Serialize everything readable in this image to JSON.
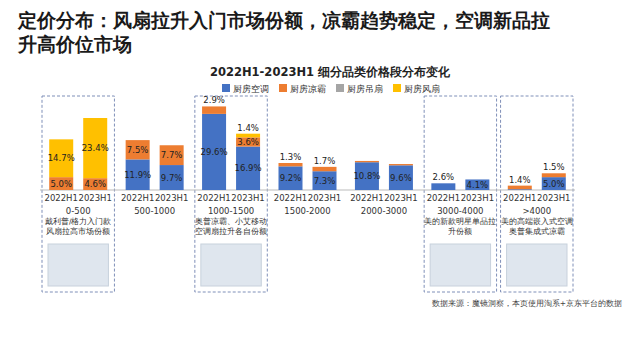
{
  "chart_data": {
    "type": "bar",
    "title": "定价分布：风扇拉升入门市场份额，凉霸趋势稳定，空调新品拉升高价位市场",
    "subtitle": "2022H1-2023H1 细分品类价格段分布变化",
    "categories": [
      "2022H1",
      "2023H1",
      "2022H1",
      "2023H1",
      "2022H1",
      "2023H1",
      "2022H1",
      "2023H1",
      "2022H1",
      "2023H1",
      "2022H1",
      "2023H1",
      "2022H1",
      "2023H1"
    ],
    "groups": [
      "0-500",
      "500-1000",
      "1000-1500",
      "1500-2000",
      "2000-3000",
      "3000-4000",
      ">4000"
    ],
    "series": [
      {
        "name": "厨房空调",
        "color": "#4472c4",
        "values": [
          0,
          0,
          11.9,
          9.7,
          29.6,
          16.9,
          9.2,
          7.3,
          10.8,
          9.6,
          2.6,
          4.1,
          0.3,
          5.0
        ],
        "value_labels": [
          null,
          null,
          "11.9%",
          "9.7%",
          "29.6%",
          "16.9%",
          "9.2%",
          "7.3%",
          "10.8%",
          "9.6%",
          "2.6%",
          "4.1%",
          null,
          "5.0%"
        ]
      },
      {
        "name": "厨房凉霸",
        "color": "#ed7d31",
        "values": [
          5.0,
          4.6,
          7.5,
          7.7,
          2.9,
          3.6,
          1.3,
          1.7,
          0.5,
          0.5,
          0,
          0,
          1.4,
          1.5
        ],
        "value_labels": [
          "5.0%",
          "4.6%",
          "7.5%",
          "7.7%",
          "2.9%",
          "3.6%",
          "1.3%",
          "1.7%",
          null,
          null,
          null,
          null,
          "1.4%",
          "1.5%"
        ]
      },
      {
        "name": "厨房吊扇",
        "color": "#a5a5a5",
        "values": [
          0,
          0,
          0,
          0,
          0,
          0,
          0,
          0,
          0,
          0,
          0,
          0,
          0,
          0
        ],
        "value_labels": [
          null,
          null,
          null,
          null,
          null,
          null,
          null,
          null,
          null,
          null,
          null,
          null,
          null,
          null
        ]
      },
      {
        "name": "厨房风扇",
        "color": "#ffc000",
        "values": [
          14.7,
          23.4,
          0,
          0,
          0,
          1.4,
          0,
          0,
          0,
          0,
          0,
          0,
          0,
          0
        ],
        "value_labels": [
          "14.7%",
          "23.4%",
          null,
          null,
          null,
          "1.4%",
          null,
          null,
          null,
          null,
          null,
          null,
          null,
          null
        ]
      }
    ],
    "stacked": true,
    "data_labels": true,
    "legend": "top",
    "tick_labels": "x",
    "ylim": [
      0,
      35
    ],
    "annotations": [
      {
        "group": 0,
        "text": "戴利普/格力入门款风扇拉高市场份额"
      },
      {
        "group": 2,
        "text": "奥普凉霸、小艾移动空调扇拉升各自份额"
      },
      {
        "group": 5,
        "text": "美的新款明星单品拉升份额"
      },
      {
        "group": 6,
        "text": "美的高端嵌入式空调奥普集成式凉霸"
      }
    ],
    "source": "数据来源：魔镜洞察，本页使用淘系+京东平台的数据"
  }
}
